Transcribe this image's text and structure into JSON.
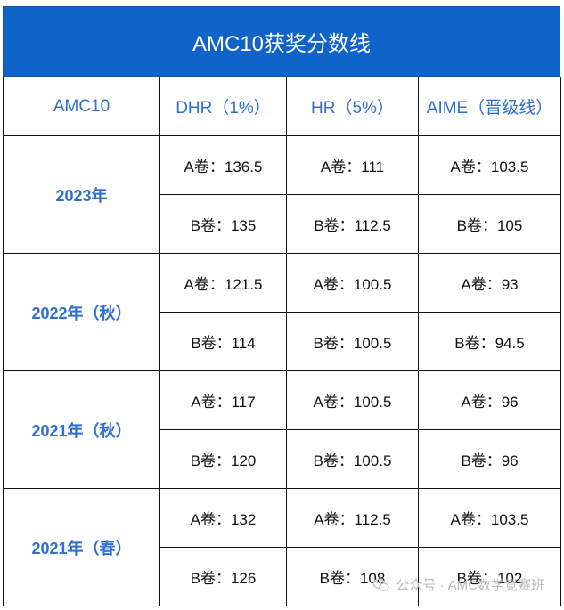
{
  "title": "AMC10获奖分数线",
  "headers": [
    "AMC10",
    "DHR（1%）",
    "HR（5%）",
    "AIME（晋级线）"
  ],
  "groups": [
    {
      "year": "2023年",
      "rows": [
        [
          "A卷：136.5",
          "A卷：111",
          "A卷：103.5"
        ],
        [
          "B卷：135",
          "B卷：112.5",
          "B卷：105"
        ]
      ]
    },
    {
      "year": "2022年（秋）",
      "rows": [
        [
          "A卷：121.5",
          "A卷：100.5",
          "A卷：93"
        ],
        [
          "B卷：114",
          "B卷：100.5",
          "B卷：94.5"
        ]
      ]
    },
    {
      "year": "2021年（秋）",
      "rows": [
        [
          "A卷：117",
          "A卷：100.5",
          "A卷：96"
        ],
        [
          "B卷：120",
          "B卷：100.5",
          "B卷：96"
        ]
      ]
    },
    {
      "year": "2021年（春）",
      "rows": [
        [
          "A卷：132",
          "A卷：112.5",
          "A卷：103.5"
        ],
        [
          "B卷：126",
          "B卷：108",
          "B卷：102"
        ]
      ]
    }
  ],
  "watermark": {
    "text": "公众号 · AMC数学竞赛班",
    "icon": "wechat-icon"
  }
}
